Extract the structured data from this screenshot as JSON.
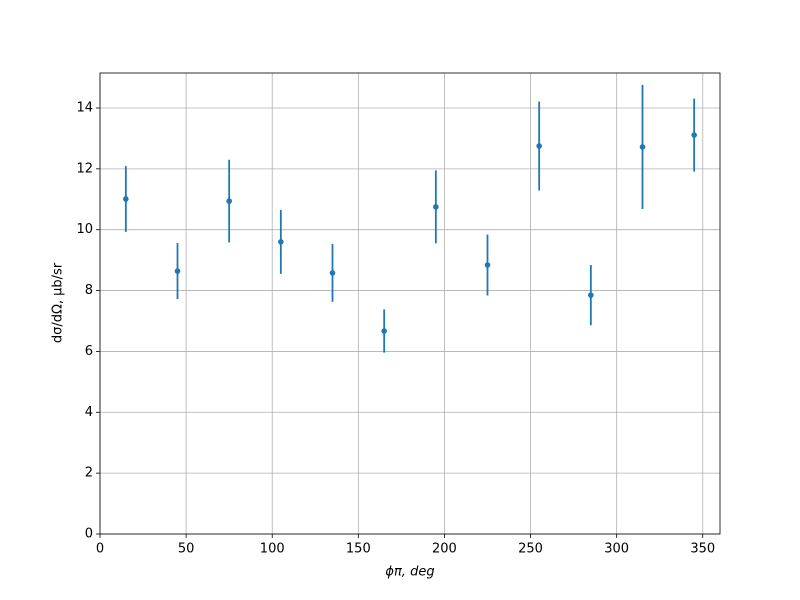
{
  "chart_data": {
    "type": "scatter",
    "x_label": "ϕπ, deg",
    "y_label": "dσ/dΩ, μb/sr",
    "x": [
      15,
      45,
      75,
      105,
      135,
      165,
      195,
      225,
      255,
      285,
      315,
      345
    ],
    "values": [
      11.01,
      8.64,
      10.94,
      9.6,
      8.58,
      6.67,
      10.75,
      8.84,
      12.75,
      7.85,
      12.72,
      13.11
    ],
    "errors": [
      1.08,
      0.92,
      1.36,
      1.05,
      0.95,
      0.71,
      1.2,
      1.0,
      1.46,
      0.99,
      2.04,
      1.2
    ],
    "color": "#1f77b4",
    "xlim": [
      0,
      360
    ],
    "xticks": [
      0,
      50,
      100,
      150,
      200,
      250,
      300,
      350
    ],
    "ylim": [
      0,
      15.15
    ],
    "yticks": [
      0,
      2,
      4,
      6,
      8,
      10,
      12,
      14
    ],
    "grid": true
  }
}
